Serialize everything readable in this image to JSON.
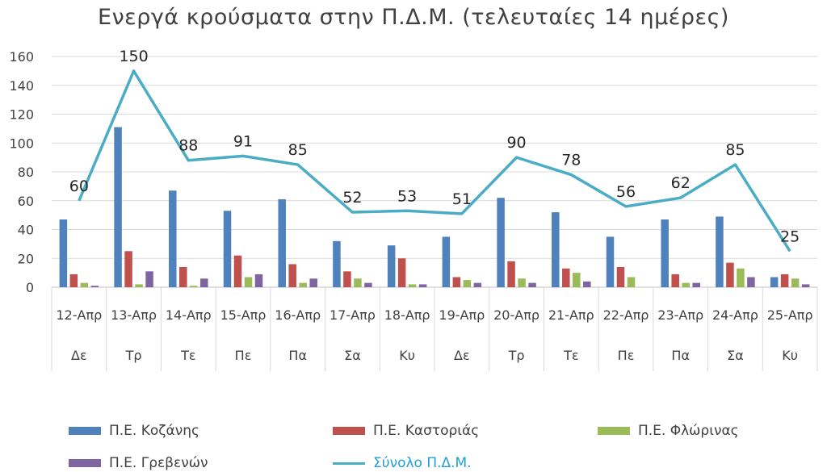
{
  "chart_data": {
    "type": "bar",
    "title": "Ενεργά κρούσματα στην Π.Δ.Μ. (τελευταίες 14 ημέρες)",
    "categories": [
      "12-Απρ",
      "13-Απρ",
      "14-Απρ",
      "15-Απρ",
      "16-Απρ",
      "17-Απρ",
      "18-Απρ",
      "19-Απρ",
      "20-Απρ",
      "21-Απρ",
      "22-Απρ",
      "23-Απρ",
      "24-Απρ",
      "25-Απρ"
    ],
    "day_labels": [
      "Δε",
      "Τρ",
      "Τε",
      "Πε",
      "Πα",
      "Σα",
      "Κυ",
      "Δε",
      "Τρ",
      "Τε",
      "Πε",
      "Πα",
      "Σα",
      "Κυ"
    ],
    "ylim": [
      0,
      160
    ],
    "yticks": [
      0,
      20,
      40,
      60,
      80,
      100,
      120,
      140,
      160
    ],
    "grid": true,
    "legend_position": "bottom",
    "series": [
      {
        "name": "Π.Ε. Κοζάνης",
        "type": "bar",
        "color": "#4f81bd",
        "values": [
          47,
          111,
          67,
          53,
          61,
          32,
          29,
          35,
          62,
          52,
          35,
          47,
          49,
          7
        ]
      },
      {
        "name": "Π.Ε. Καστοριάς",
        "type": "bar",
        "color": "#c0504d",
        "values": [
          9,
          25,
          14,
          22,
          16,
          11,
          20,
          7,
          18,
          13,
          14,
          9,
          17,
          9
        ]
      },
      {
        "name": "Π.Ε. Φλώρινας",
        "type": "bar",
        "color": "#9bbb59",
        "values": [
          3,
          2,
          1,
          7,
          3,
          6,
          2,
          5,
          6,
          10,
          7,
          3,
          13,
          6
        ]
      },
      {
        "name": "Π.Ε. Γρεβενών",
        "type": "bar",
        "color": "#8064a2",
        "values": [
          1,
          11,
          6,
          9,
          6,
          3,
          2,
          3,
          3,
          4,
          0,
          3,
          7,
          2
        ]
      },
      {
        "name": "Σύνολο Π.Δ.Μ.",
        "type": "line",
        "color": "#4bacc6",
        "values": [
          60,
          150,
          88,
          91,
          85,
          52,
          53,
          51,
          90,
          78,
          56,
          62,
          85,
          25
        ]
      }
    ]
  }
}
